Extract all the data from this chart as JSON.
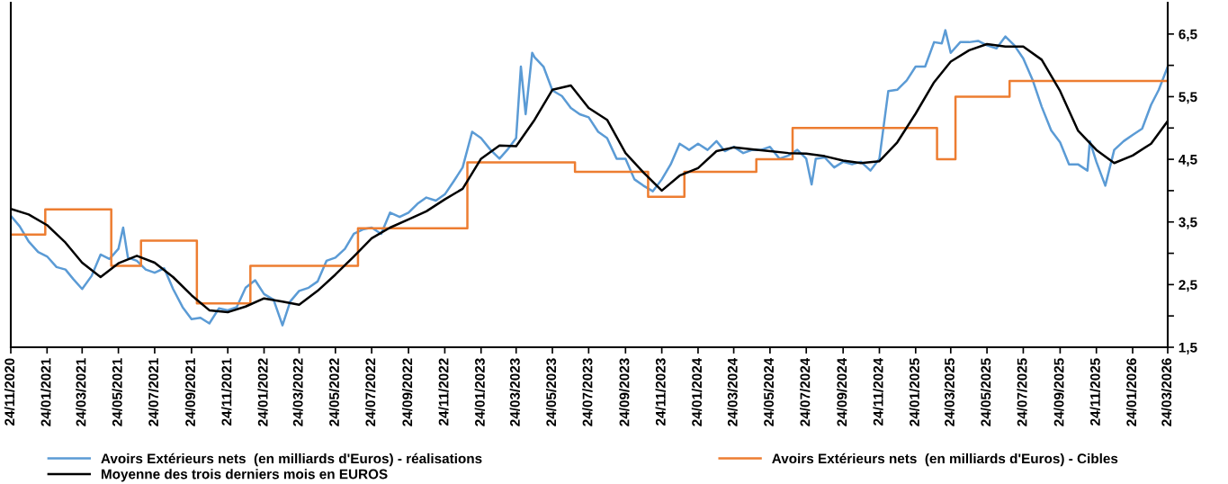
{
  "chart_data": {
    "type": "line",
    "xlim": [
      "2020-11-24",
      "2026-03-24"
    ],
    "xticks": [
      {
        "value": "2020-11-24",
        "label": "24/11/2020"
      },
      {
        "value": "2021-01-24",
        "label": "24/01/2021"
      },
      {
        "value": "2021-03-24",
        "label": "24/03/2021"
      },
      {
        "value": "2021-05-24",
        "label": "24/05/2021"
      },
      {
        "value": "2021-07-24",
        "label": "24/07/2021"
      },
      {
        "value": "2021-09-24",
        "label": "24/09/2021"
      },
      {
        "value": "2021-11-24",
        "label": "24/11/2021"
      },
      {
        "value": "2022-01-24",
        "label": "24/01/2022"
      },
      {
        "value": "2022-03-24",
        "label": "24/03/2022"
      },
      {
        "value": "2022-05-24",
        "label": "24/05/2022"
      },
      {
        "value": "2022-07-24",
        "label": "24/07/2022"
      },
      {
        "value": "2022-09-24",
        "label": "24/09/2022"
      },
      {
        "value": "2022-11-24",
        "label": "24/11/2022"
      },
      {
        "value": "2023-01-24",
        "label": "24/01/2023"
      },
      {
        "value": "2023-03-24",
        "label": "24/03/2023"
      },
      {
        "value": "2023-05-24",
        "label": "24/05/2023"
      },
      {
        "value": "2023-07-24",
        "label": "24/07/2023"
      },
      {
        "value": "2023-09-24",
        "label": "24/09/2023"
      },
      {
        "value": "2023-11-24",
        "label": "24/11/2023"
      },
      {
        "value": "2024-01-24",
        "label": "24/01/2024"
      },
      {
        "value": "2024-03-24",
        "label": "24/03/2024"
      },
      {
        "value": "2024-05-24",
        "label": "24/05/2024"
      },
      {
        "value": "2024-07-24",
        "label": "24/07/2024"
      },
      {
        "value": "2024-09-24",
        "label": "24/09/2024"
      },
      {
        "value": "2024-11-24",
        "label": "24/11/2024"
      },
      {
        "value": "2025-01-24",
        "label": "24/01/2025"
      },
      {
        "value": "2025-03-24",
        "label": "24/03/2025"
      },
      {
        "value": "2025-05-24",
        "label": "24/05/2025"
      },
      {
        "value": "2025-07-24",
        "label": "24/07/2025"
      },
      {
        "value": "2025-09-24",
        "label": "24/09/2025"
      },
      {
        "value": "2025-11-24",
        "label": "24/11/2025"
      },
      {
        "value": "2026-01-24",
        "label": "24/01/2026"
      },
      {
        "value": "2026-03-24",
        "label": "24/03/2026"
      }
    ],
    "ylim": [
      1.5,
      7.0
    ],
    "yticks": [
      {
        "value": 1.5,
        "label": "1,5"
      },
      {
        "value": 2,
        "label": null
      },
      {
        "value": 2.5,
        "label": "2,5"
      },
      {
        "value": 3,
        "label": null
      },
      {
        "value": 3.5,
        "label": "3,5"
      },
      {
        "value": 4,
        "label": null
      },
      {
        "value": 4.5,
        "label": "4,5"
      },
      {
        "value": 5,
        "label": null
      },
      {
        "value": 5.5,
        "label": "5,5"
      },
      {
        "value": 6,
        "label": null
      },
      {
        "value": 6.5,
        "label": "6,5"
      }
    ],
    "grid": false,
    "legend": "bottom",
    "marker": "none",
    "line_style": "solid",
    "series": [
      {
        "name": "Avoirs Extérieurs nets  (en milliards d'Euros) - réalisations",
        "color": "#5b9bd5",
        "x": [
          "2020-11-24",
          "2020-12-09",
          "2020-12-24",
          "2021-01-09",
          "2021-01-24",
          "2021-02-09",
          "2021-02-24",
          "2021-03-09",
          "2021-03-24",
          "2021-04-09",
          "2021-04-24",
          "2021-05-09",
          "2021-05-24",
          "2021-06-01",
          "2021-06-09",
          "2021-06-24",
          "2021-07-09",
          "2021-07-24",
          "2021-08-09",
          "2021-08-24",
          "2021-09-09",
          "2021-09-24",
          "2021-10-09",
          "2021-10-24",
          "2021-11-09",
          "2021-11-24",
          "2021-12-09",
          "2021-12-24",
          "2022-01-09",
          "2022-01-24",
          "2022-02-09",
          "2022-02-24",
          "2022-03-09",
          "2022-03-24",
          "2022-04-09",
          "2022-04-24",
          "2022-05-09",
          "2022-05-24",
          "2022-06-09",
          "2022-06-24",
          "2022-07-09",
          "2022-07-24",
          "2022-08-09",
          "2022-08-24",
          "2022-09-09",
          "2022-09-24",
          "2022-10-09",
          "2022-10-24",
          "2022-11-09",
          "2022-11-24",
          "2022-12-09",
          "2022-12-24",
          "2023-01-09",
          "2023-01-24",
          "2023-02-09",
          "2023-02-24",
          "2023-03-09",
          "2023-03-24",
          "2023-04-01",
          "2023-04-09",
          "2023-04-20",
          "2023-04-24",
          "2023-05-09",
          "2023-05-24",
          "2023-06-09",
          "2023-06-24",
          "2023-07-09",
          "2023-07-24",
          "2023-08-09",
          "2023-08-24",
          "2023-09-09",
          "2023-09-24",
          "2023-10-09",
          "2023-10-24",
          "2023-11-09",
          "2023-11-24",
          "2023-12-09",
          "2023-12-24",
          "2024-01-09",
          "2024-01-24",
          "2024-02-09",
          "2024-02-24",
          "2024-03-09",
          "2024-03-24",
          "2024-04-09",
          "2024-04-24",
          "2024-05-09",
          "2024-05-24",
          "2024-06-09",
          "2024-06-24",
          "2024-07-09",
          "2024-07-24",
          "2024-08-02",
          "2024-08-09",
          "2024-08-24",
          "2024-09-09",
          "2024-09-24",
          "2024-10-09",
          "2024-10-24",
          "2024-11-09",
          "2024-11-24",
          "2024-12-09",
          "2024-12-24",
          "2025-01-09",
          "2025-01-24",
          "2025-02-09",
          "2025-02-24",
          "2025-03-09",
          "2025-03-15",
          "2025-03-24",
          "2025-04-09",
          "2025-04-24",
          "2025-05-09",
          "2025-05-24",
          "2025-06-09",
          "2025-06-24",
          "2025-07-09",
          "2025-07-24",
          "2025-08-09",
          "2025-08-24",
          "2025-09-09",
          "2025-09-24",
          "2025-10-09",
          "2025-10-24",
          "2025-11-09",
          "2025-11-13",
          "2025-11-24",
          "2025-12-09",
          "2025-12-24",
          "2026-01-09",
          "2026-01-24",
          "2026-02-09",
          "2026-02-24",
          "2026-03-09",
          "2026-03-24"
        ],
        "values": [
          3.6,
          3.43,
          3.19,
          3.02,
          2.95,
          2.78,
          2.74,
          2.59,
          2.43,
          2.64,
          2.98,
          2.91,
          3.07,
          3.41,
          2.93,
          2.88,
          2.74,
          2.69,
          2.76,
          2.43,
          2.14,
          1.95,
          1.97,
          1.88,
          2.12,
          2.09,
          2.14,
          2.45,
          2.57,
          2.35,
          2.26,
          1.85,
          2.23,
          2.4,
          2.45,
          2.55,
          2.88,
          2.93,
          3.07,
          3.31,
          3.38,
          3.41,
          3.31,
          3.65,
          3.58,
          3.65,
          3.79,
          3.89,
          3.84,
          3.94,
          4.15,
          4.37,
          4.94,
          4.84,
          4.65,
          4.51,
          4.65,
          4.84,
          5.98,
          5.22,
          6.2,
          6.13,
          5.98,
          5.6,
          5.51,
          5.32,
          5.22,
          5.17,
          4.94,
          4.84,
          4.51,
          4.51,
          4.18,
          4.08,
          3.99,
          4.18,
          4.42,
          4.75,
          4.65,
          4.75,
          4.65,
          4.79,
          4.63,
          4.7,
          4.6,
          4.65,
          4.65,
          4.7,
          4.51,
          4.56,
          4.65,
          4.51,
          4.1,
          4.51,
          4.53,
          4.37,
          4.46,
          4.42,
          4.46,
          4.32,
          4.51,
          5.59,
          5.61,
          5.76,
          5.98,
          5.98,
          6.37,
          6.35,
          6.56,
          6.2,
          6.37,
          6.37,
          6.39,
          6.32,
          6.27,
          6.46,
          6.32,
          6.11,
          5.76,
          5.34,
          4.96,
          4.77,
          4.42,
          4.42,
          4.32,
          4.79,
          4.46,
          4.08,
          4.65,
          4.79,
          4.89,
          4.99,
          5.37,
          5.61,
          5.98
        ]
      },
      {
        "name": "Avoirs Extérieurs nets  (en milliards d'Euros) - Cibles",
        "color": "#ed7d31",
        "type": "step",
        "x": [
          "2020-11-24",
          "2021-01-21",
          "2021-05-12",
          "2021-07-01",
          "2021-10-03",
          "2022-01-01",
          "2022-07-01",
          "2023-01-01",
          "2023-07-01",
          "2023-11-01",
          "2024-01-01",
          "2024-05-01",
          "2024-07-01",
          "2025-03-01",
          "2025-04-01",
          "2025-07-01",
          "2026-03-24"
        ],
        "values": [
          3.3,
          3.7,
          2.8,
          3.2,
          2.2,
          2.8,
          3.4,
          4.45,
          4.3,
          3.9,
          4.3,
          4.5,
          5.0,
          4.5,
          5.5,
          5.75,
          5.75
        ]
      },
      {
        "name": "Moyenne des trois derniers mois en EUROS",
        "color": "#000000",
        "x": [
          "2020-11-24",
          "2020-12-24",
          "2021-01-24",
          "2021-02-24",
          "2021-03-24",
          "2021-04-24",
          "2021-05-24",
          "2021-06-24",
          "2021-07-24",
          "2021-08-24",
          "2021-09-24",
          "2021-10-24",
          "2021-11-24",
          "2021-12-24",
          "2022-01-24",
          "2022-02-24",
          "2022-03-24",
          "2022-04-24",
          "2022-05-24",
          "2022-06-24",
          "2022-07-24",
          "2022-08-24",
          "2022-09-24",
          "2022-10-24",
          "2022-11-24",
          "2022-12-24",
          "2023-01-24",
          "2023-02-24",
          "2023-03-24",
          "2023-04-24",
          "2023-05-24",
          "2023-06-24",
          "2023-07-24",
          "2023-08-24",
          "2023-09-24",
          "2023-10-24",
          "2023-11-24",
          "2023-12-24",
          "2024-01-24",
          "2024-02-24",
          "2024-03-24",
          "2024-04-24",
          "2024-05-24",
          "2024-06-24",
          "2024-07-24",
          "2024-08-24",
          "2024-09-24",
          "2024-10-24",
          "2024-11-24",
          "2024-12-24",
          "2025-01-24",
          "2025-02-24",
          "2025-03-24",
          "2025-04-24",
          "2025-05-24",
          "2025-06-24",
          "2025-07-24",
          "2025-08-24",
          "2025-09-24",
          "2025-10-24",
          "2025-11-24",
          "2025-12-24",
          "2026-01-24",
          "2026-02-24",
          "2026-03-24"
        ],
        "values": [
          3.71,
          3.62,
          3.45,
          3.17,
          2.85,
          2.62,
          2.84,
          2.96,
          2.85,
          2.62,
          2.33,
          2.09,
          2.06,
          2.15,
          2.28,
          2.23,
          2.18,
          2.4,
          2.66,
          2.95,
          3.24,
          3.41,
          3.54,
          3.67,
          3.86,
          4.03,
          4.51,
          4.72,
          4.71,
          5.13,
          5.61,
          5.68,
          5.32,
          5.13,
          4.6,
          4.29,
          4.0,
          4.24,
          4.36,
          4.63,
          4.69,
          4.66,
          4.63,
          4.6,
          4.59,
          4.55,
          4.48,
          4.44,
          4.47,
          4.77,
          5.23,
          5.73,
          6.06,
          6.24,
          6.34,
          6.3,
          6.3,
          6.09,
          5.59,
          4.96,
          4.65,
          4.44,
          4.56,
          4.75,
          5.11
        ]
      }
    ]
  }
}
